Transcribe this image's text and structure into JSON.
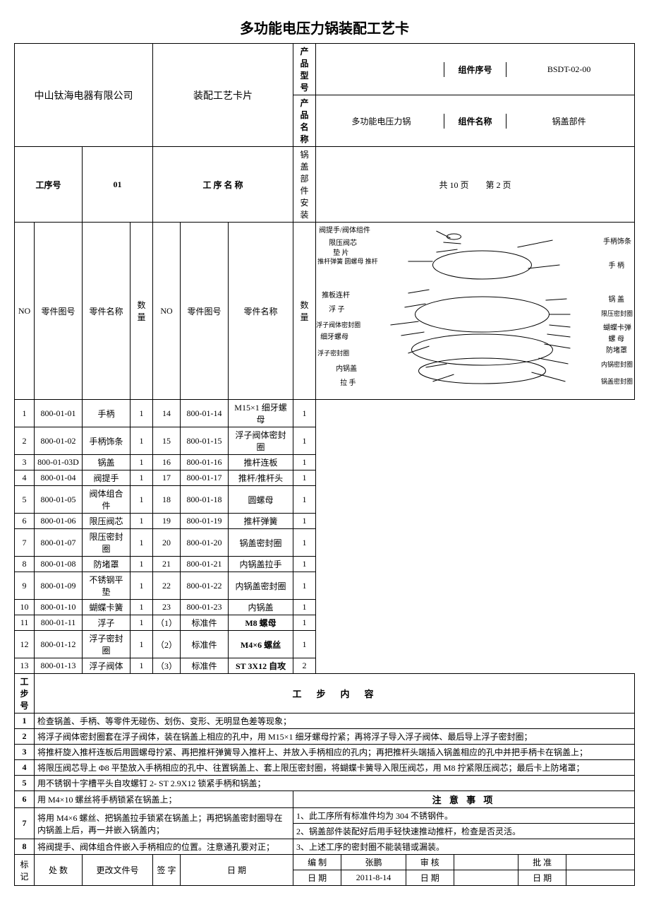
{
  "title": "多功能电压力锅装配工艺卡",
  "header": {
    "company": "中山钛海电器有限公司",
    "card_type": "装配工艺卡片",
    "product_model_label": "产品型号",
    "product_model": "",
    "component_seq_label": "组件序号",
    "component_seq": "BSDT-02-00",
    "product_name_label": "产品名称",
    "product_name": "多功能电压力锅",
    "component_name_label": "组件名称",
    "component_name": "锅盖部件",
    "process_no_label": "工序号",
    "process_no": "01",
    "process_name_label": "工 序 名 称",
    "process_name": "锅盖部件安装",
    "pages": "共 10 页　　第 2 页"
  },
  "partsCols": {
    "no": "NO",
    "fig": "零件图号",
    "name": "零件名称",
    "qty": "数量"
  },
  "partsLeft": [
    {
      "no": "1",
      "fig": "800-01-01",
      "name": "手柄",
      "qty": "1"
    },
    {
      "no": "2",
      "fig": "800-01-02",
      "name": "手柄饰条",
      "qty": "1"
    },
    {
      "no": "3",
      "fig": "800-01-03D",
      "name": "锅盖",
      "qty": "1"
    },
    {
      "no": "4",
      "fig": "800-01-04",
      "name": "阀提手",
      "qty": "1"
    },
    {
      "no": "5",
      "fig": "800-01-05",
      "name": "阀体组合件",
      "qty": "1"
    },
    {
      "no": "6",
      "fig": "800-01-06",
      "name": "限压阀芯",
      "qty": "1"
    },
    {
      "no": "7",
      "fig": "800-01-07",
      "name": "限压密封圈",
      "qty": "1"
    },
    {
      "no": "8",
      "fig": "800-01-08",
      "name": "防堵罩",
      "qty": "1"
    },
    {
      "no": "9",
      "fig": "800-01-09",
      "name": "不锈钢平垫",
      "qty": "1"
    },
    {
      "no": "10",
      "fig": "800-01-10",
      "name": "蝴蝶卡簧",
      "qty": "1"
    },
    {
      "no": "11",
      "fig": "800-01-11",
      "name": "浮子",
      "qty": "1"
    },
    {
      "no": "12",
      "fig": "800-01-12",
      "name": "浮子密封圈",
      "qty": "1"
    },
    {
      "no": "13",
      "fig": "800-01-13",
      "name": "浮子阀体",
      "qty": "1"
    }
  ],
  "partsRight": [
    {
      "no": "14",
      "fig": "800-01-14",
      "name": "M15×1 细牙螺母",
      "qty": "1"
    },
    {
      "no": "15",
      "fig": "800-01-15",
      "name": "浮子阀体密封圈",
      "qty": "1"
    },
    {
      "no": "16",
      "fig": "800-01-16",
      "name": "推杆连板",
      "qty": "1"
    },
    {
      "no": "17",
      "fig": "800-01-17",
      "name": "推杆/推杆头",
      "qty": "1"
    },
    {
      "no": "18",
      "fig": "800-01-18",
      "name": "圆螺母",
      "qty": "1"
    },
    {
      "no": "19",
      "fig": "800-01-19",
      "name": "推杆弹簧",
      "qty": "1"
    },
    {
      "no": "20",
      "fig": "800-01-20",
      "name": "锅盖密封圈",
      "qty": "1"
    },
    {
      "no": "21",
      "fig": "800-01-21",
      "name": "内锅盖拉手",
      "qty": "1"
    },
    {
      "no": "22",
      "fig": "800-01-22",
      "name": "内锅盖密封圈",
      "qty": "1"
    },
    {
      "no": "23",
      "fig": "800-01-23",
      "name": "内锅盖",
      "qty": "1"
    },
    {
      "no": "（1）",
      "fig": "标准件",
      "name": "M8 螺母",
      "qty": "1",
      "bold": true
    },
    {
      "no": "（2）",
      "fig": "标准件",
      "name": "M4×6 螺丝",
      "qty": "1",
      "bold": true
    },
    {
      "no": "（3）",
      "fig": "标准件",
      "name": "ST 3X12 自攻",
      "qty": "2",
      "bold": true
    }
  ],
  "stepHdr": {
    "no": "工步号",
    "content": "工　步　内　容"
  },
  "steps": [
    {
      "no": "1",
      "txt": "检查锅盖、手柄、等零件无碰伤、划伤、变形、无明显色差等现象；"
    },
    {
      "no": "2",
      "txt": "将浮子阀体密封圈套在浮子阀体，装在锅盖上相应的孔中，用 M15×1 细牙螺母拧紧；再将浮子导入浮子阀体、最后导上浮子密封圈；"
    },
    {
      "no": "3",
      "txt": "将推杆旋入推杆连板后用圆螺母拧紧、再把推杆弹簧导入推杆上、并放入手柄相应的孔内；再把推杆头端插入锅盖相应的孔中并把手柄卡在锅盖上；"
    },
    {
      "no": "4",
      "txt": "将限压阀芯导上 Φ8 平垫放入手柄相应的孔中、往置锅盖上、套上限压密封圈，将蝴蝶卡簧导入限压阀芯，用 M8 拧紧限压阀芯；最后卡上防堵罩；"
    },
    {
      "no": "5",
      "txt": "用不锈钢十字槽平头自攻螺钉 2- ST 2.9X12 锁紧手柄和锅盖；"
    }
  ],
  "notesHdr": "注 意 事 项",
  "stepsNotes": [
    {
      "no": "6",
      "left": "用 M4×10 螺丝将手柄锁紧在锅盖上；",
      "right": ""
    },
    {
      "no": "7",
      "left": "将用 M4×6 螺丝、把锅盖拉手锁紧在锅盖上；再把锅盖密封圈导在内锅盖上后，再一并嵌入锅盖内；",
      "right": "1、此工序所有标准件均为 304 不锈钢件。\n2、锅盖部件装配好后用手轻快速推动推杆，检查是否灵活。"
    },
    {
      "no": "8",
      "left": "将阀提手、阀体组合件嵌入手柄相应的位置。注意通孔要对正；",
      "right": "3、上述工序的密封圈不能装错或漏装。"
    }
  ],
  "footer": {
    "mark": "标记",
    "count": "处 数",
    "changefile": "更改文件号",
    "sign": "签 字",
    "date": "日 期",
    "draw": "编 制",
    "draw_by": "张鹏",
    "check": "审 核",
    "approve": "批 准",
    "date_label": "日 期",
    "date_val": "2011-8-14"
  },
  "diagramLabels": [
    "阀提手/阀体组件",
    "限压阀芯",
    "垫 片",
    "推杆弹簧  圆螺母  推杆",
    "推板连杆",
    "浮 子",
    "浮子阀体密封圈",
    "细牙螺母",
    "浮子密封圈",
    "内锅盖",
    "拉 手",
    "手柄饰条",
    "手 柄",
    "锅 盖",
    "限压密封圈",
    "蝴蝶卡弹",
    "螺 母",
    "防堵罩",
    "内锅密封圈",
    "锅盖密封圈"
  ]
}
